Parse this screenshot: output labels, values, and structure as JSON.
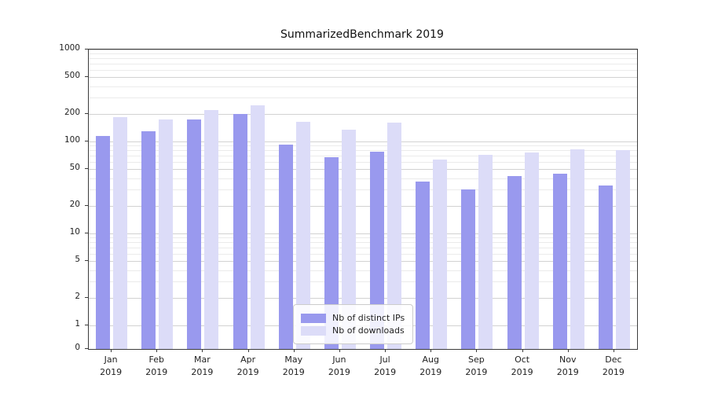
{
  "chart_data": {
    "type": "bar",
    "title": "SummarizedBenchmark 2019",
    "categories": [
      "Jan",
      "Feb",
      "Mar",
      "Apr",
      "May",
      "Jun",
      "Jul",
      "Aug",
      "Sep",
      "Oct",
      "Nov",
      "Dec"
    ],
    "x_sublabel": "2019",
    "series": [
      {
        "name": "Nb of distinct IPs",
        "color": "#9999ee",
        "values": [
          115,
          130,
          175,
          200,
          92,
          68,
          78,
          37,
          30,
          42,
          45,
          33
        ]
      },
      {
        "name": "Nb of downloads",
        "color": "#dcdcf8",
        "values": [
          185,
          175,
          220,
          245,
          165,
          135,
          160,
          63,
          72,
          76,
          82,
          80
        ]
      }
    ],
    "yaxis": {
      "scale": "symlog",
      "ticks": [
        0,
        1,
        2,
        5,
        10,
        20,
        50,
        100,
        200,
        500,
        1000
      ],
      "minor_ticks": [
        3,
        4,
        6,
        7,
        8,
        9,
        30,
        40,
        60,
        70,
        80,
        90,
        300,
        400,
        600,
        700,
        800,
        900
      ],
      "range": [
        0,
        1000
      ]
    },
    "legend": {
      "position": "lower center",
      "entries": [
        "Nb of distinct IPs",
        "Nb of downloads"
      ]
    },
    "grid": true
  }
}
